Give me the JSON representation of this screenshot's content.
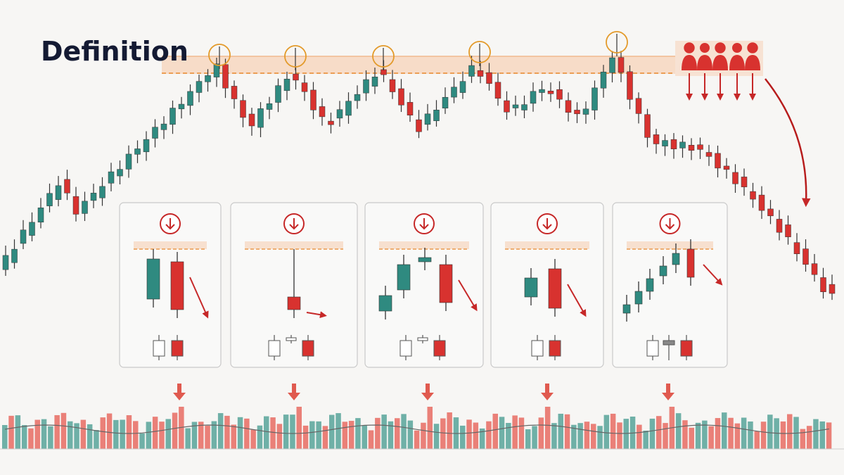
{
  "title": "Definition"
}
